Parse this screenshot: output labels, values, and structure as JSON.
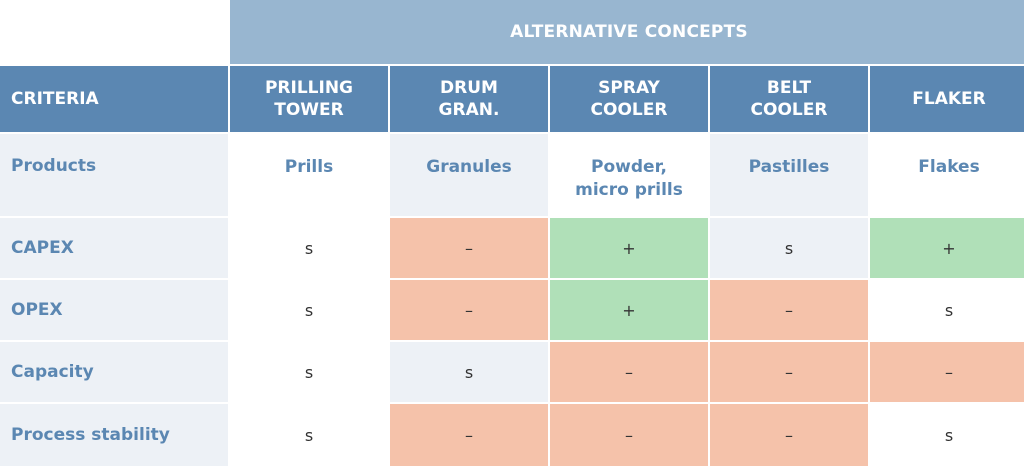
{
  "header": {
    "group_title": "ALTERNATIVE CONCEPTS",
    "criteria_label": "CRITERIA",
    "columns": [
      "PRILLING\nTOWER",
      "DRUM\nGRAN.",
      "SPRAY\nCOOLER",
      "BELT\nCOOLER",
      "FLAKER"
    ]
  },
  "rows": [
    {
      "criterion": "Products",
      "cells": [
        "Prills",
        "Granules",
        "Powder,\nmicro prills",
        "Pastilles",
        "Flakes"
      ]
    },
    {
      "criterion": "CAPEX",
      "cells": [
        "s",
        "–",
        "+",
        "s",
        "+"
      ]
    },
    {
      "criterion": "OPEX",
      "cells": [
        "s",
        "–",
        "+",
        "–",
        "s"
      ]
    },
    {
      "criterion": "Capacity",
      "cells": [
        "s",
        "s",
        "–",
        "–",
        "–"
      ]
    },
    {
      "criterion": "Process stability",
      "cells": [
        "s",
        "–",
        "–",
        "–",
        "s"
      ]
    }
  ],
  "colors": {
    "header_dark": "#5b87b2",
    "header_light": "#98b6d0",
    "row_light": "#edf1f6",
    "negative": "#f5c2aa",
    "positive": "#b0e0b8"
  }
}
